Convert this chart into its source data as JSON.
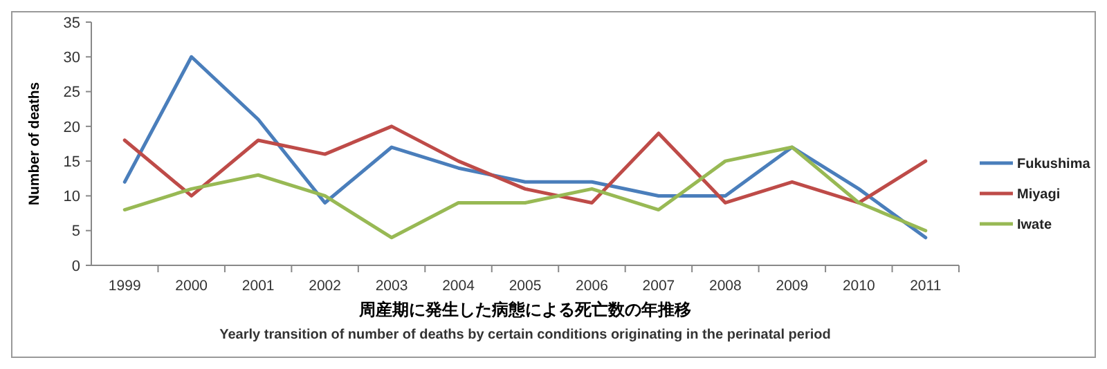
{
  "chart_data": {
    "type": "line",
    "title": "周産期に発生した病態による死亡数の年推移",
    "subtitle": "Yearly transition of number of deaths by certain conditions originating in the perinatal period",
    "ylabel": "Number of deaths",
    "categories": [
      "1999",
      "2000",
      "2001",
      "2002",
      "2003",
      "2004",
      "2005",
      "2006",
      "2007",
      "2008",
      "2009",
      "2010",
      "2011"
    ],
    "series": [
      {
        "name": "Fukushima",
        "color": "#4a7ebb",
        "values": [
          12,
          30,
          21,
          9,
          17,
          14,
          12,
          12,
          10,
          10,
          17,
          11,
          4
        ]
      },
      {
        "name": "Miyagi",
        "color": "#be4b48",
        "values": [
          18,
          10,
          18,
          16,
          20,
          15,
          11,
          9,
          19,
          9,
          12,
          9,
          15
        ]
      },
      {
        "name": "Iwate",
        "color": "#98b954",
        "values": [
          8,
          11,
          13,
          10,
          4,
          9,
          9,
          11,
          8,
          15,
          17,
          9,
          5
        ]
      }
    ],
    "ylim": [
      0,
      35
    ],
    "yticks": [
      0,
      5,
      10,
      15,
      20,
      25,
      30,
      35
    ],
    "grid": false,
    "legend": "right",
    "marker": "none",
    "line_style": "solid"
  }
}
